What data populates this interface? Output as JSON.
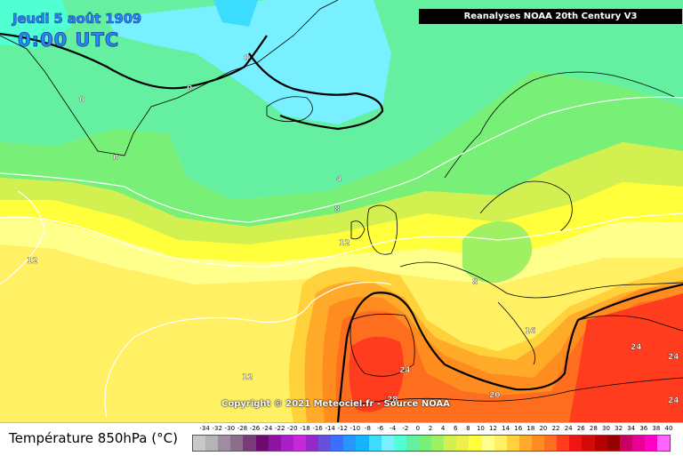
{
  "header": {
    "date": "Jeudi 5 août 1909",
    "time": "0:00 UTC",
    "source": "Reanalyses NOAA 20th Century V3"
  },
  "footer": {
    "copyright": "Copyright © 2021 Meteociel.fr - Source NOAA",
    "legend_title": "Température 850hPa (°C)"
  },
  "legend": {
    "values": [
      "-34",
      "-32",
      "-30",
      "-28",
      "-26",
      "-24",
      "-22",
      "-20",
      "-18",
      "-16",
      "-14",
      "-12",
      "-10",
      "-8",
      "-6",
      "-4",
      "-2",
      "0",
      "2",
      "4",
      "6",
      "8",
      "10",
      "12",
      "14",
      "16",
      "18",
      "20",
      "22",
      "24",
      "26",
      "28",
      "30",
      "32",
      "34",
      "36",
      "38",
      "40"
    ],
    "colors": [
      "#c8c8c8",
      "#b4b4b4",
      "#a08ca0",
      "#8c6e8c",
      "#783c78",
      "#6e0a6e",
      "#8c14a0",
      "#aa1ec8",
      "#c828dc",
      "#9628c8",
      "#6450dc",
      "#3c6eff",
      "#2896ff",
      "#14b4ff",
      "#3cdcff",
      "#78f0ff",
      "#50ffd2",
      "#64f0a0",
      "#78f078",
      "#a0f064",
      "#d2f050",
      "#f0f04b",
      "#ffff3c",
      "#ffff8c",
      "#fff064",
      "#ffd23c",
      "#ffaa28",
      "#ff8c1e",
      "#ff6e1e",
      "#ff3c1e",
      "#f01414",
      "#d20a0a",
      "#b40000",
      "#960000",
      "#c80064",
      "#e60096",
      "#ff00c8",
      "#ff64ff"
    ]
  },
  "contour_labels": [
    "0",
    "0",
    "0",
    "0",
    "4",
    "8",
    "8",
    "12",
    "12",
    "12",
    "16",
    "20",
    "24",
    "24",
    "24",
    "24",
    "28"
  ],
  "colors": {
    "header_text": "#2a86ff",
    "land_outline": "#000000",
    "contour_line": "#ffffff",
    "isotherm_20": "#000000"
  }
}
